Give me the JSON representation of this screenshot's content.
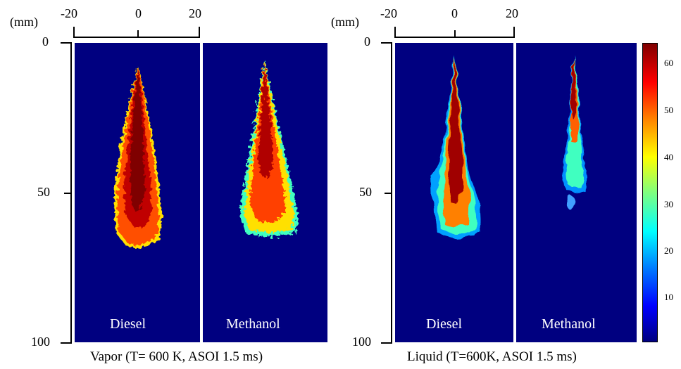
{
  "left_group": {
    "unit_label": "(mm)",
    "x_ticks": [
      "-20",
      "0",
      "20"
    ],
    "y_ticks": [
      "0",
      "50",
      "100"
    ],
    "panels": [
      {
        "label": "Diesel",
        "kind": "vapor-diesel"
      },
      {
        "label": "Methanol",
        "kind": "vapor-methanol"
      }
    ],
    "caption": "Vapor (T= 600 K, ASOI 1.5 ms)"
  },
  "right_group": {
    "unit_label": "(mm)",
    "x_ticks": [
      "-20",
      "0",
      "20"
    ],
    "y_ticks": [
      "0",
      "50",
      "100"
    ],
    "panels": [
      {
        "label": "Diesel",
        "kind": "liquid-diesel"
      },
      {
        "label": "Methanol",
        "kind": "liquid-methanol"
      }
    ],
    "caption": "Liquid (T=600K, ASOI 1.5 ms)"
  },
  "colorbar": {
    "ticks": [
      "60",
      "50",
      "40",
      "30",
      "20",
      "10"
    ],
    "colormap": "jet",
    "background_color": "#000080",
    "max_color": "#7f0000"
  }
}
